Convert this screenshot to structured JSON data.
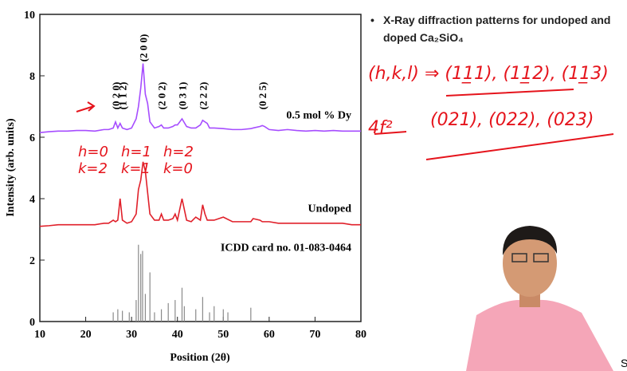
{
  "chart_data": {
    "type": "line",
    "x_label": "Position (2θ)",
    "y_label": "Intensity (arb. units)",
    "xlim": [
      10,
      80
    ],
    "xticks": [
      10,
      20,
      30,
      40,
      50,
      60,
      70,
      80
    ],
    "ylim": [
      0,
      10
    ],
    "yticks": [
      0,
      2,
      4,
      6,
      8,
      10
    ],
    "x": [
      10,
      12,
      14,
      16,
      18,
      20,
      22,
      24,
      25,
      26,
      26.5,
      27,
      27.5,
      28,
      29,
      30,
      31,
      31.5,
      32,
      32.5,
      33,
      33.5,
      34,
      35,
      36,
      36.5,
      37,
      38,
      39,
      39.5,
      40,
      41,
      42,
      43,
      44,
      45,
      45.5,
      46,
      46.5,
      47,
      48,
      50,
      52,
      54,
      56,
      56.5,
      58,
      58.5,
      59,
      60,
      62,
      64,
      66,
      68,
      70,
      72,
      74,
      76,
      78,
      80
    ],
    "series": [
      {
        "name": "0.5 mol % Dy",
        "color": "#a64dff",
        "values": [
          6.15,
          6.18,
          6.2,
          6.2,
          6.22,
          6.22,
          6.2,
          6.25,
          6.25,
          6.3,
          6.5,
          6.3,
          6.45,
          6.3,
          6.25,
          6.3,
          6.6,
          7.0,
          7.6,
          8.4,
          7.4,
          7.1,
          6.5,
          6.3,
          6.35,
          6.4,
          6.3,
          6.3,
          6.35,
          6.4,
          6.4,
          6.6,
          6.35,
          6.3,
          6.3,
          6.4,
          6.55,
          6.5,
          6.45,
          6.3,
          6.3,
          6.28,
          6.25,
          6.25,
          6.28,
          6.3,
          6.35,
          6.38,
          6.35,
          6.25,
          6.22,
          6.25,
          6.22,
          6.2,
          6.22,
          6.2,
          6.22,
          6.2,
          6.2,
          6.2
        ]
      },
      {
        "name": "Undoped",
        "color": "#e0202a",
        "values": [
          3.1,
          3.12,
          3.15,
          3.15,
          3.15,
          3.15,
          3.15,
          3.2,
          3.2,
          3.3,
          3.25,
          3.3,
          4.0,
          3.3,
          3.2,
          3.25,
          3.5,
          4.3,
          4.6,
          5.2,
          4.9,
          4.2,
          3.5,
          3.3,
          3.3,
          3.5,
          3.3,
          3.3,
          3.35,
          3.5,
          3.3,
          4.0,
          3.3,
          3.25,
          3.4,
          3.3,
          3.8,
          3.5,
          3.3,
          3.3,
          3.3,
          3.4,
          3.25,
          3.25,
          3.25,
          3.35,
          3.3,
          3.25,
          3.25,
          3.25,
          3.2,
          3.2,
          3.2,
          3.2,
          3.2,
          3.2,
          3.2,
          3.2,
          3.15,
          3.15
        ]
      }
    ],
    "sticks": {
      "name": "ICDD card no. 01-083-0464",
      "color": "#8a8a8a",
      "x": [
        26,
        27,
        28,
        29.5,
        31,
        31.5,
        32,
        32.4,
        33,
        34,
        35,
        36.5,
        38,
        39.5,
        41,
        41.5,
        44,
        45.5,
        47,
        48,
        50,
        51,
        56
      ],
      "values": [
        0.3,
        0.4,
        0.35,
        0.3,
        0.7,
        2.5,
        2.2,
        2.3,
        0.9,
        1.6,
        0.3,
        0.4,
        0.6,
        0.7,
        1.1,
        0.5,
        0.4,
        0.8,
        0.3,
        0.5,
        0.4,
        0.3,
        0.45
      ]
    },
    "annotations": [
      {
        "text": "(0 2 0)",
        "x": 26.5
      },
      {
        "text": "(1 1 2)",
        "x": 28
      },
      {
        "text": "(2 0 0)",
        "x": 32.5
      },
      {
        "text": "(2 0 2)",
        "x": 36.5
      },
      {
        "text": "(0 3 1)",
        "x": 41
      },
      {
        "text": "(2 2 2)",
        "x": 45.5
      },
      {
        "text": "(0 2 5)",
        "x": 58.5
      }
    ]
  },
  "bullet": "X-Ray diffraction patterns for undoped and doped Ca₂SiO₄",
  "handwriting": [
    "(h,k,l) ⇒ (11̲1), (11̲2), (11̲3)",
    "4f²",
    "(021), (022), (023)",
    "h=0 k=2",
    "h=1 k=1",
    "h=2 k=0"
  ],
  "corner": "S"
}
